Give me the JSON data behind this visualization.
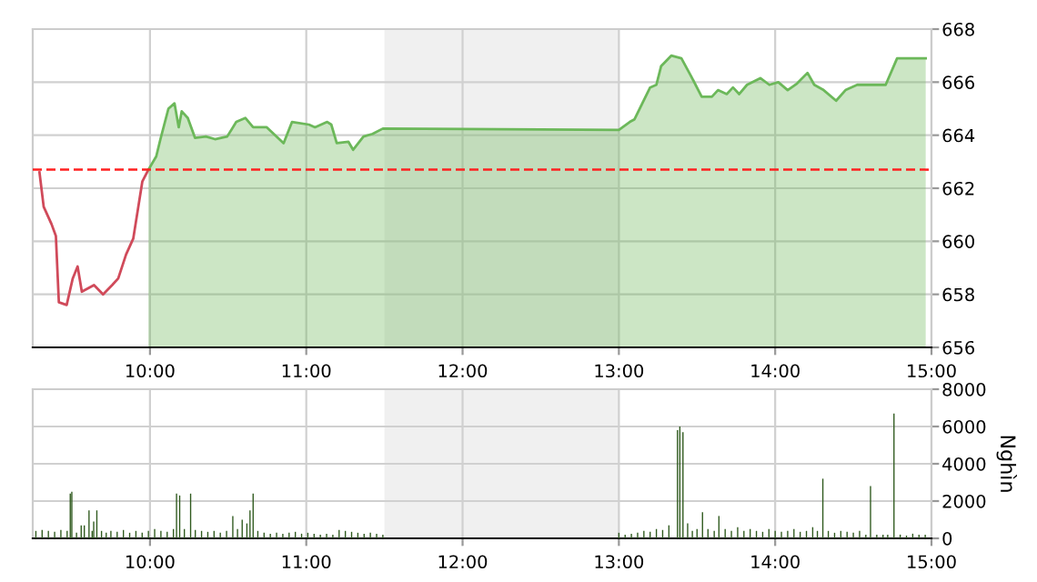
{
  "chart_data": [
    {
      "type": "area",
      "xlim": [
        9.25,
        15.0
      ],
      "xticks": [
        {
          "value": 10,
          "label": "10:00"
        },
        {
          "value": 11,
          "label": "11:00"
        },
        {
          "value": 12,
          "label": "12:00"
        },
        {
          "value": 13,
          "label": "13:00"
        },
        {
          "value": 14,
          "label": "14:00"
        },
        {
          "value": 15,
          "label": "15:00"
        }
      ],
      "ylim": [
        656,
        668
      ],
      "yticks": [
        656,
        658,
        660,
        662,
        664,
        666,
        668
      ],
      "grid": true,
      "bands": [
        {
          "axis": "x",
          "from": 11.5,
          "to": 13.0,
          "color": "#f0f0f0"
        }
      ],
      "ref_lines": [
        {
          "axis": "y",
          "value": 662.7,
          "color": "#ff2020",
          "line_style": "dashed"
        }
      ],
      "series": [
        {
          "type": "line",
          "color": "#d04a5a",
          "x": [
            9.293,
            9.32,
            9.37,
            9.398,
            9.417,
            9.467,
            9.506,
            9.537,
            9.564,
            9.642,
            9.7,
            9.758,
            9.797,
            9.847,
            9.893,
            9.951,
            9.99
          ],
          "values": [
            662.6,
            661.3,
            660.65,
            660.2,
            657.7,
            657.6,
            658.6,
            659.05,
            658.1,
            658.35,
            658.0,
            658.35,
            658.6,
            659.5,
            660.1,
            662.25,
            662.7
          ]
        },
        {
          "type": "area",
          "color": "#6cb85a",
          "x": [
            9.99,
            10.04,
            10.067,
            10.118,
            10.157,
            10.184,
            10.203,
            10.242,
            10.288,
            10.358,
            10.416,
            10.494,
            10.552,
            10.61,
            10.66,
            10.747,
            10.855,
            10.909,
            11.017,
            11.056,
            11.134,
            11.16,
            11.195,
            11.27,
            11.3,
            11.366,
            11.424,
            11.49,
            13.0,
            13.07,
            13.1,
            13.15,
            13.2,
            13.24,
            13.27,
            13.335,
            13.4,
            13.46,
            13.53,
            13.595,
            13.634,
            13.69,
            13.73,
            13.77,
            13.82,
            13.905,
            13.963,
            14.02,
            14.08,
            14.14,
            14.207,
            14.25,
            14.31,
            14.39,
            14.45,
            14.525,
            14.707,
            14.78,
            14.963
          ],
          "values": [
            662.7,
            663.2,
            663.85,
            665.0,
            665.2,
            664.3,
            664.9,
            664.65,
            663.9,
            663.95,
            663.85,
            663.95,
            664.5,
            664.65,
            664.3,
            664.3,
            663.7,
            664.5,
            664.4,
            664.3,
            664.5,
            664.4,
            663.7,
            663.75,
            663.45,
            663.95,
            664.05,
            664.25,
            664.2,
            664.5,
            664.6,
            665.2,
            665.8,
            665.9,
            666.6,
            667.0,
            666.9,
            666.25,
            665.45,
            665.45,
            665.7,
            665.55,
            665.8,
            665.55,
            665.9,
            666.15,
            665.9,
            666.0,
            665.7,
            665.95,
            666.35,
            665.9,
            665.7,
            665.3,
            665.7,
            665.9,
            665.9,
            666.9,
            666.9
          ]
        }
      ]
    },
    {
      "type": "bar",
      "xlim": [
        9.25,
        15.0
      ],
      "xticks": [
        {
          "value": 10,
          "label": "10:00"
        },
        {
          "value": 11,
          "label": "11:00"
        },
        {
          "value": 12,
          "label": "12:00"
        },
        {
          "value": 13,
          "label": "13:00"
        },
        {
          "value": 14,
          "label": "14:00"
        },
        {
          "value": 15,
          "label": "15:00"
        }
      ],
      "ylim": [
        0,
        8000
      ],
      "yticks": [
        0,
        2000,
        4000,
        6000,
        8000
      ],
      "ylabel": "Nghìn",
      "grid": true,
      "bands": [
        {
          "axis": "x",
          "from": 11.5,
          "to": 13.0,
          "color": "#f0f0f0"
        }
      ],
      "series": [
        {
          "color": "#2f5a1e",
          "x": [
            9.27,
            9.31,
            9.35,
            9.39,
            9.43,
            9.47,
            9.49,
            9.5,
            9.53,
            9.56,
            9.58,
            9.61,
            9.63,
            9.64,
            9.66,
            9.69,
            9.72,
            9.75,
            9.79,
            9.83,
            9.87,
            9.91,
            9.95,
            9.99,
            10.03,
            10.07,
            10.11,
            10.15,
            10.17,
            10.19,
            10.22,
            10.26,
            10.29,
            10.33,
            10.37,
            10.41,
            10.45,
            10.49,
            10.53,
            10.56,
            10.59,
            10.62,
            10.64,
            10.66,
            10.69,
            10.73,
            10.77,
            10.81,
            10.85,
            10.89,
            10.93,
            10.97,
            11.01,
            11.05,
            11.09,
            11.13,
            11.17,
            11.21,
            11.25,
            11.29,
            11.33,
            11.37,
            11.41,
            11.45,
            11.49,
            13.0,
            13.04,
            13.08,
            13.12,
            13.16,
            13.2,
            13.24,
            13.28,
            13.32,
            13.375,
            13.39,
            13.41,
            13.44,
            13.47,
            13.5,
            13.535,
            13.57,
            13.61,
            13.64,
            13.68,
            13.72,
            13.76,
            13.8,
            13.84,
            13.88,
            13.92,
            13.96,
            14.0,
            14.04,
            14.08,
            14.12,
            14.16,
            14.2,
            14.24,
            14.27,
            14.305,
            14.34,
            14.38,
            14.42,
            14.46,
            14.5,
            14.54,
            14.58,
            14.61,
            14.65,
            14.69,
            14.72,
            14.76,
            14.8,
            14.84,
            14.88,
            14.92,
            14.96
          ],
          "values": [
            400,
            450,
            400,
            350,
            450,
            400,
            2400,
            2500,
            300,
            700,
            700,
            1500,
            400,
            900,
            1500,
            400,
            300,
            400,
            350,
            450,
            300,
            400,
            300,
            400,
            500,
            400,
            350,
            500,
            2400,
            2300,
            500,
            2400,
            450,
            400,
            350,
            400,
            300,
            400,
            1200,
            500,
            1000,
            800,
            1500,
            2400,
            400,
            300,
            250,
            300,
            250,
            300,
            350,
            250,
            300,
            250,
            200,
            250,
            200,
            450,
            400,
            350,
            300,
            250,
            300,
            250,
            200,
            300,
            200,
            250,
            300,
            400,
            350,
            500,
            450,
            700,
            5800,
            6000,
            5700,
            800,
            400,
            500,
            1400,
            500,
            400,
            1200,
            500,
            400,
            600,
            400,
            500,
            400,
            350,
            500,
            400,
            350,
            400,
            500,
            350,
            400,
            600,
            400,
            3200,
            400,
            300,
            400,
            350,
            300,
            400,
            200,
            2800,
            200,
            200,
            200,
            6700,
            200,
            150,
            250,
            200,
            200
          ]
        }
      ]
    }
  ]
}
